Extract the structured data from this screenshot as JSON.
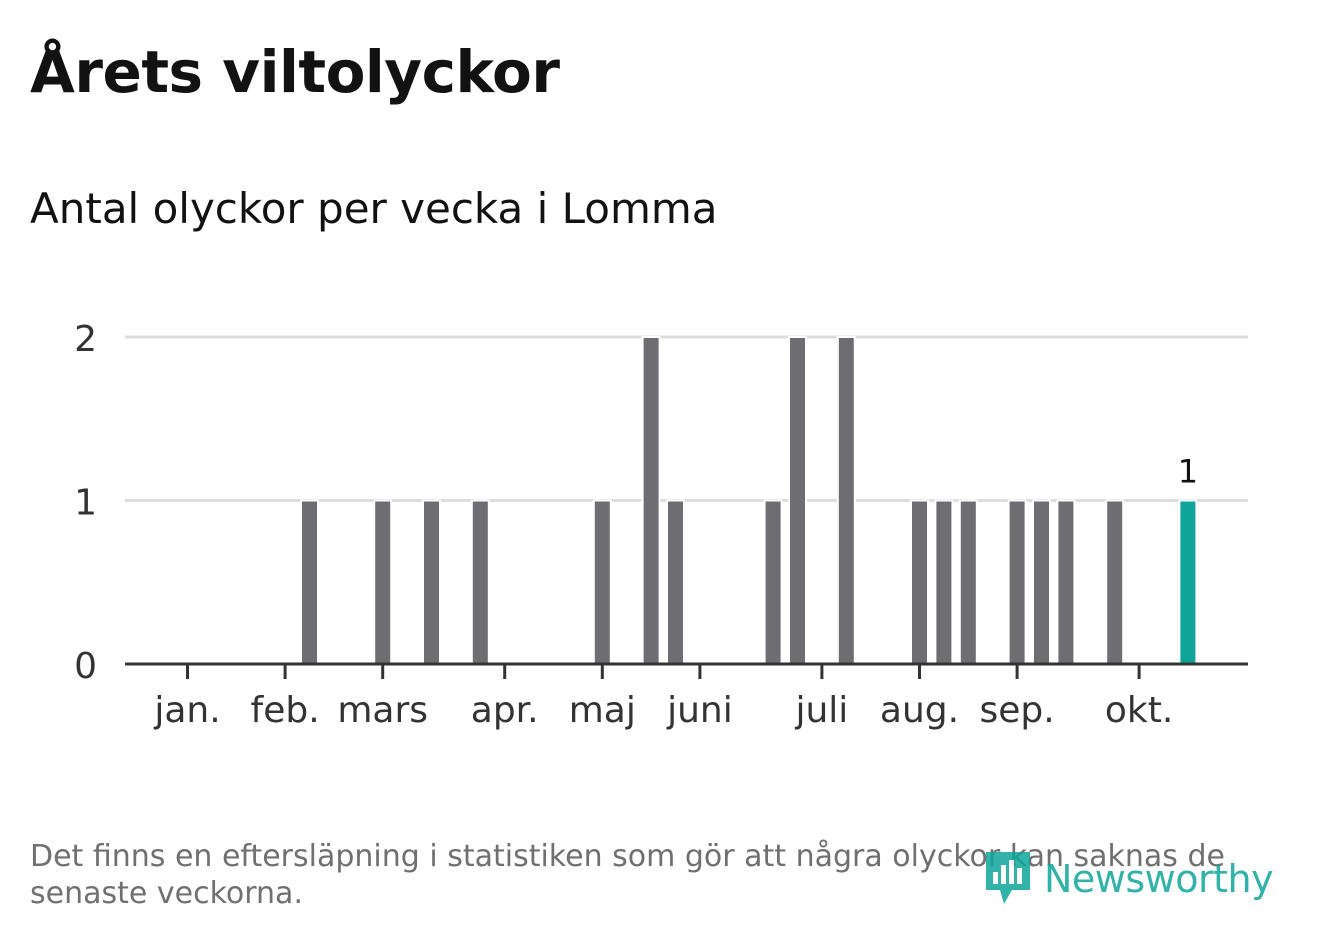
{
  "header": {
    "title": "Årets viltolyckor",
    "subtitle": "Antal olyckor per vecka i Lomma"
  },
  "footer": {
    "note": "Det finns en eftersläpning i statistiken som gör att några olyckor kan saknas de senaste veckorna.",
    "brand": "Newsworthy"
  },
  "colors": {
    "bar": "#6e6d72",
    "highlight": "#0fa59a",
    "grid": "#dddddd",
    "axis": "#333333",
    "text": "#121212"
  },
  "chart_data": {
    "type": "bar",
    "title": "Årets viltolyckor",
    "subtitle": "Antal olyckor per vecka i Lomma",
    "xlabel": "",
    "ylabel": "",
    "ylim": [
      0,
      2
    ],
    "yticks": [
      0,
      1,
      2
    ],
    "grid": true,
    "x_unit": "week",
    "month_ticks": [
      {
        "label": "jan.",
        "week": 1
      },
      {
        "label": "feb.",
        "week": 5
      },
      {
        "label": "mars",
        "week": 9
      },
      {
        "label": "apr.",
        "week": 14
      },
      {
        "label": "maj",
        "week": 18
      },
      {
        "label": "juni",
        "week": 22
      },
      {
        "label": "juli",
        "week": 27
      },
      {
        "label": "aug.",
        "week": 31
      },
      {
        "label": "sep.",
        "week": 35
      },
      {
        "label": "okt.",
        "week": 40
      }
    ],
    "weeks": [
      1,
      2,
      3,
      4,
      5,
      6,
      7,
      8,
      9,
      10,
      11,
      12,
      13,
      14,
      15,
      16,
      17,
      18,
      19,
      20,
      21,
      22,
      23,
      24,
      25,
      26,
      27,
      28,
      29,
      30,
      31,
      32,
      33,
      34,
      35,
      36,
      37,
      38,
      39,
      40,
      41,
      42,
      43
    ],
    "values": [
      0,
      0,
      0,
      0,
      0,
      1,
      0,
      0,
      1,
      0,
      1,
      0,
      1,
      0,
      0,
      0,
      0,
      1,
      0,
      2,
      1,
      0,
      0,
      0,
      1,
      2,
      0,
      2,
      0,
      0,
      1,
      1,
      1,
      0,
      1,
      1,
      1,
      0,
      1,
      0,
      0,
      1,
      0
    ],
    "highlight_week": 42,
    "highlight_label": "1"
  }
}
